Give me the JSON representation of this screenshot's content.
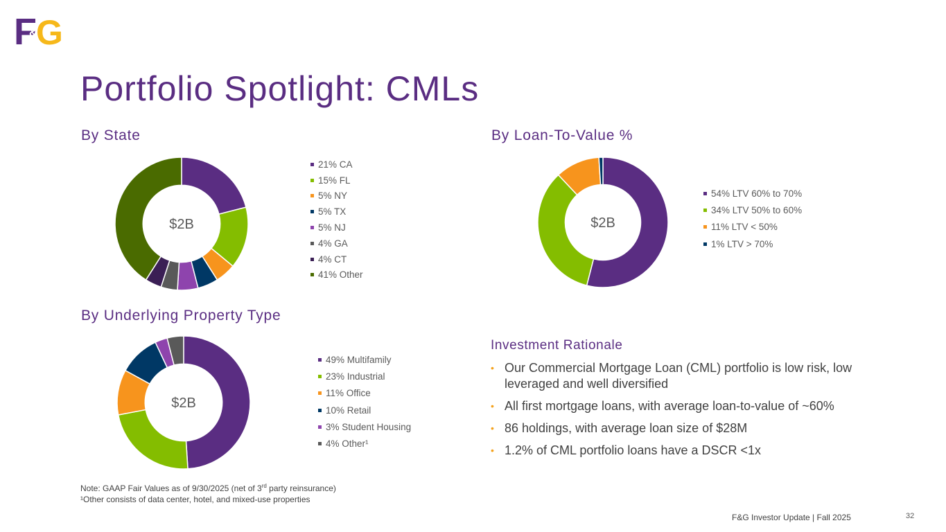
{
  "logo": {
    "text_f": "F",
    "text_amp": "&",
    "text_g": "G",
    "colors": {
      "purple": "#5a2d82",
      "gold": "#f6b81a"
    }
  },
  "title": "Portfolio Spotlight:  CMLs",
  "sections": {
    "by_state": "By State",
    "by_ltv": "By Loan-To-Value %",
    "by_property": "By Underlying Property Type"
  },
  "chart_data": [
    {
      "type": "pie",
      "title": "By State",
      "center_label": "$2B",
      "categories": [
        "21% CA",
        "15% FL",
        "5% NY",
        "5% TX",
        "5% NJ",
        "4% GA",
        "4% CT",
        "41% Other"
      ],
      "values": [
        21,
        15,
        5,
        5,
        5,
        4,
        4,
        41
      ],
      "colors": [
        "#5a2d82",
        "#84bd00",
        "#f7941d",
        "#003865",
        "#8e44ad",
        "#595959",
        "#3b1f55",
        "#4a6b00"
      ]
    },
    {
      "type": "pie",
      "title": "By Loan-To-Value %",
      "center_label": "$2B",
      "categories": [
        "54% LTV 60% to 70%",
        "34% LTV 50% to 60%",
        "11% LTV < 50%",
        "1% LTV > 70%"
      ],
      "values": [
        54,
        34,
        11,
        1
      ],
      "colors": [
        "#5a2d82",
        "#84bd00",
        "#f7941d",
        "#003865"
      ]
    },
    {
      "type": "pie",
      "title": "By Underlying Property Type",
      "center_label": "$2B",
      "categories": [
        "49% Multifamily",
        "23% Industrial",
        "11% Office",
        "10% Retail",
        "3% Student Housing",
        "4% Other¹"
      ],
      "values": [
        49,
        23,
        11,
        10,
        3,
        4
      ],
      "colors": [
        "#5a2d82",
        "#84bd00",
        "#f7941d",
        "#003865",
        "#8e44ad",
        "#595959"
      ]
    }
  ],
  "rationale": {
    "title": "Investment Rationale",
    "bullets": [
      "Our Commercial Mortgage Loan (CML) portfolio is low risk, low leveraged and well diversified",
      "All first mortgage loans, with average loan-to-value of ~60%",
      "86 holdings, with average loan size of $28M",
      "1.2% of CML portfolio loans have a DSCR <1x"
    ],
    "bullet_glyph": "•"
  },
  "notes": {
    "line1_before": "Note: GAAP Fair Values as of 9/30/2025 (net of 3",
    "line1_sup": "rd",
    "line1_after": " party reinsurance)",
    "line2": "¹Other consists of data center, hotel, and mixed-use properties"
  },
  "footer": {
    "text": "F&G Investor Update |  Fall 2025",
    "page": "32"
  }
}
